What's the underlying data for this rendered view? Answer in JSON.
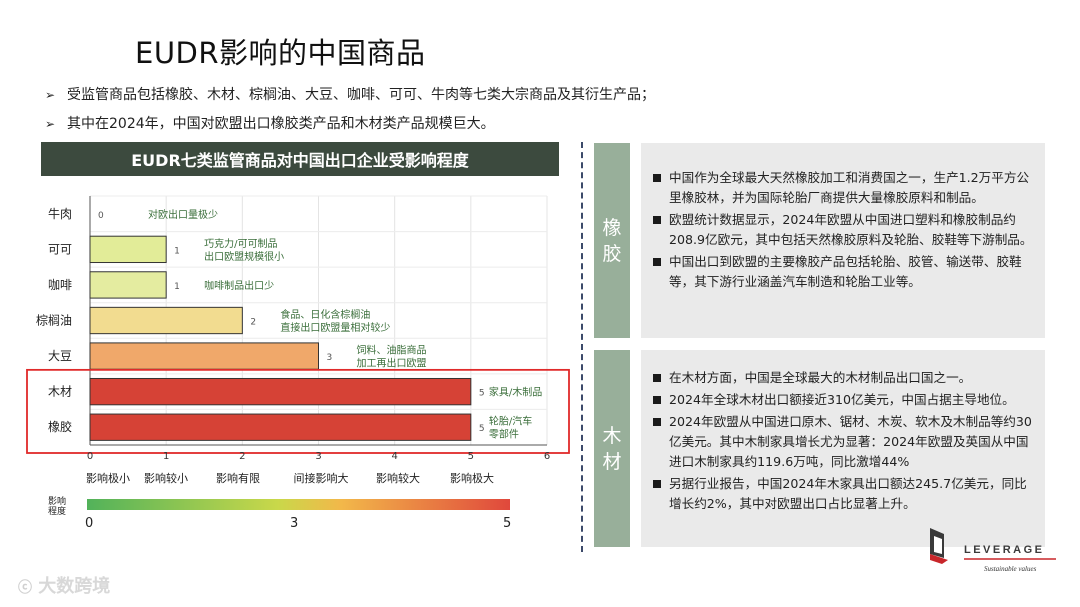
{
  "title": "EUDR影响的中国商品",
  "bullets": [
    "受监管商品包括橡胶、木材、棕榈油、大豆、咖啡、可可、牛肉等七类大宗商品及其衍生产品；",
    "其中在2024年，中国对欧盟出口橡胶类产品和木材类产品规模巨大。"
  ],
  "chart_header": "EUDR七类监管商品对中国出口企业受影响程度",
  "chart_data": {
    "type": "bar",
    "orientation": "horizontal",
    "categories": [
      "牛肉",
      "可可",
      "咖啡",
      "棕榈油",
      "大豆",
      "木材",
      "橡胶"
    ],
    "values": [
      0,
      1,
      1,
      2,
      3,
      5,
      5
    ],
    "value_labels": [
      "0",
      "1",
      "1",
      "2",
      "3",
      "5",
      "5"
    ],
    "annotations": [
      "对欧出口量极少",
      "巧克力/可可制品\n出口欧盟规模很小",
      "咖啡制品出口少",
      "食品、日化含棕榈油\n直接出口欧盟量相对较少",
      "饲料、油脂商品\n加工再出口欧盟",
      "家具/木制品",
      "轮胎/汽车\n零部件"
    ],
    "xlim": [
      0,
      6
    ],
    "x_ticks": [
      "0",
      "1",
      "2",
      "3",
      "4",
      "5",
      "6"
    ],
    "x_tick_descriptions": [
      "影响极小",
      "影响较小",
      "影响有限",
      "间接影响大",
      "影响较大",
      "影响极大"
    ],
    "colors": [
      "#e2e8a4",
      "#e2ec98",
      "#e4eca0",
      "#f2dc90",
      "#f0a86a",
      "#d64236",
      "#d64236"
    ],
    "highlight_color": "#e02a2a",
    "grid": true,
    "colorbar": {
      "label": "影响\n程度",
      "ticks": [
        "0",
        "3",
        "5"
      ]
    }
  },
  "tags": [
    "橡胶",
    "木材"
  ],
  "rubber_points": [
    "中国作为全球最大天然橡胶加工和消费国之一，生产1.2万平方公里橡胶林，并为国际轮胎厂商提供大量橡胶原料和制品。",
    "欧盟统计数据显示，2024年欧盟从中国进口塑料和橡胶制品约208.9亿欧元，其中包括天然橡胶原料及轮胎、胶鞋等下游制品。",
    "中国出口到欧盟的主要橡胶产品包括轮胎、胶管、输送带、胶鞋等，其下游行业涵盖汽车制造和轮胎工业等。"
  ],
  "wood_points": [
    "在木材方面，中国是全球最大的木材制品出口国之一。",
    "2024年全球木材出口额接近310亿美元，中国占据主导地位。",
    "2024年欧盟从中国进口原木、锯材、木炭、软木及木制品等约30亿美元。其中木制家具增长尤为显著：2024年欧盟及英国从中国进口木制家具约119.6万吨，同比激增44%",
    "另据行业报告，中国2024年木家具出口额达245.7亿美元，同比增长约2%，其中对欧盟出口占比显著上升。"
  ],
  "logo": {
    "name": "LEVERAGE",
    "slogan": "Sustainable values",
    "icon": "leverage-logo-icon"
  },
  "watermark": "大数跨境"
}
